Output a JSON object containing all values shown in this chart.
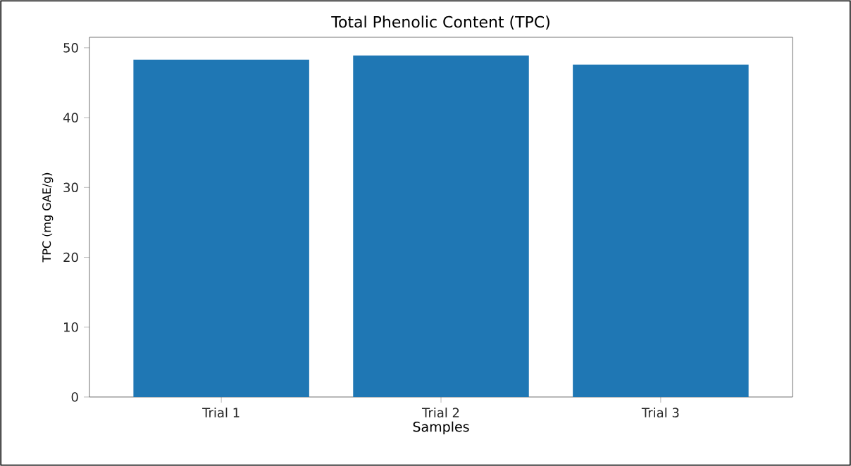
{
  "chart_data": {
    "type": "bar",
    "title": "Total Phenolic Content (TPC)",
    "xlabel": "Samples",
    "ylabel": "TPC (mg GAE/g)",
    "categories": [
      "Trial 1",
      "Trial 2",
      "Trial 3"
    ],
    "values": [
      48.3,
      48.9,
      47.6
    ],
    "color": "#1f77b4",
    "ylim": [
      0,
      51.5
    ],
    "yticks": [
      0,
      10,
      20,
      30,
      40,
      50
    ],
    "grid": false
  }
}
